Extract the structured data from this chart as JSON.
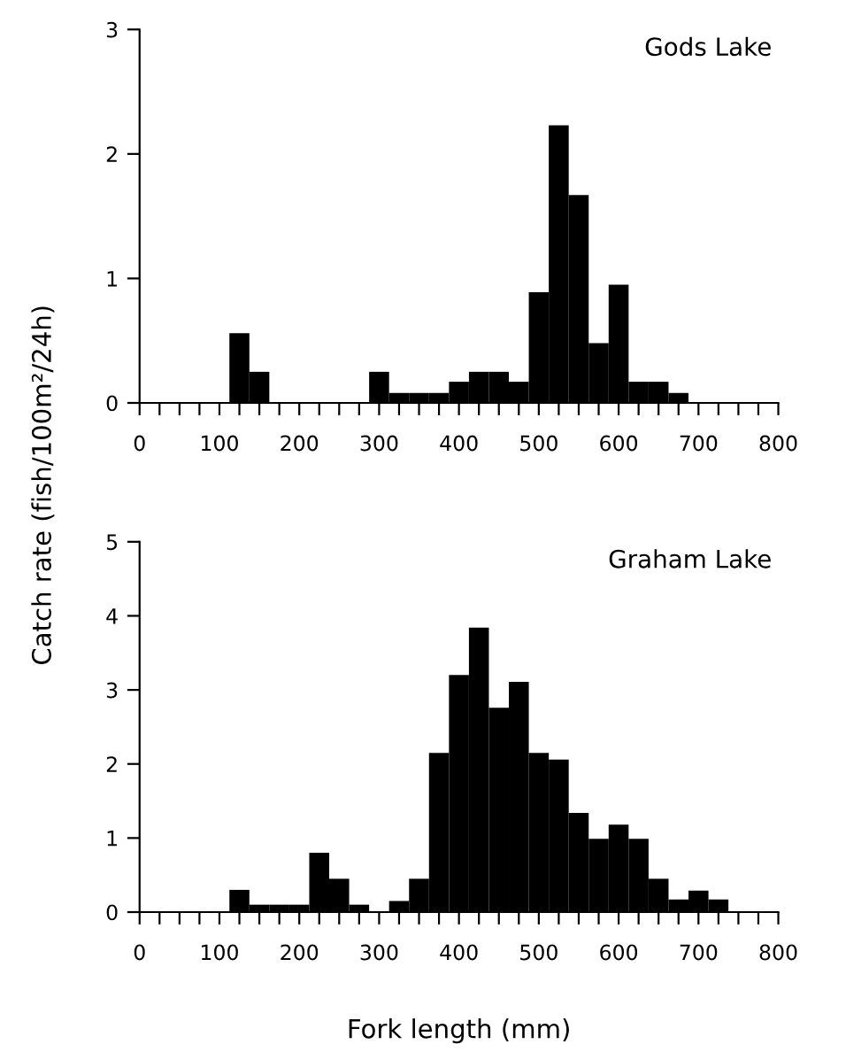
{
  "chart_data": [
    {
      "type": "histogram",
      "ylabel": "Catch rate (fish/100m²/24h)",
      "annotations": [
        "Gods Lake"
      ],
      "color": "#000000",
      "bins": [
        112.5,
        137.5,
        162.5,
        187.5,
        212.5,
        237.5,
        262.5,
        287.5,
        312.5,
        337.5,
        362.5,
        387.5,
        412.5,
        437.5,
        462.5,
        487.5,
        512.5,
        537.5,
        562.5,
        587.5,
        612.5,
        637.5,
        662.5,
        687.5
      ],
      "values": [
        0.56,
        0.25,
        0,
        0,
        0,
        0,
        0,
        0.25,
        0.08,
        0.08,
        0.08,
        0.17,
        0.25,
        0.25,
        0.17,
        0.89,
        2.23,
        1.67,
        0.48,
        0.95,
        0.17,
        0.17,
        0.08
      ],
      "xlim": [
        0,
        800
      ],
      "ylim": [
        0,
        3
      ],
      "yticks": [
        0,
        1,
        2,
        3
      ],
      "xticks": [
        0,
        {
          "value": 25,
          "label": null
        },
        {
          "value": 50,
          "label": null
        },
        {
          "value": 75,
          "label": null
        },
        100,
        {
          "value": 125,
          "label": null
        },
        {
          "value": 150,
          "label": null
        },
        {
          "value": 175,
          "label": null
        },
        200,
        {
          "value": 225,
          "label": null
        },
        {
          "value": 250,
          "label": null
        },
        {
          "value": 275,
          "label": null
        },
        300,
        {
          "value": 325,
          "label": null
        },
        {
          "value": 350,
          "label": null
        },
        {
          "value": 375,
          "label": null
        },
        400,
        {
          "value": 425,
          "label": null
        },
        {
          "value": 450,
          "label": null
        },
        {
          "value": 475,
          "label": null
        },
        500,
        {
          "value": 525,
          "label": null
        },
        {
          "value": 550,
          "label": null
        },
        {
          "value": 575,
          "label": null
        },
        600,
        {
          "value": 625,
          "label": null
        },
        {
          "value": 650,
          "label": null
        },
        {
          "value": 675,
          "label": null
        },
        700,
        {
          "value": 725,
          "label": null
        },
        {
          "value": 750,
          "label": null
        },
        {
          "value": 775,
          "label": null
        },
        800
      ],
      "grid": false
    },
    {
      "type": "histogram",
      "xlabel": "Fork length (mm)",
      "annotations": [
        "Graham Lake"
      ],
      "color": "#000000",
      "bins": [
        112.5,
        137.5,
        162.5,
        187.5,
        212.5,
        237.5,
        262.5,
        287.5,
        312.5,
        337.5,
        362.5,
        387.5,
        412.5,
        437.5,
        462.5,
        487.5,
        512.5,
        537.5,
        562.5,
        587.5,
        612.5,
        637.5,
        662.5,
        687.5,
        712.5,
        737.5
      ],
      "values": [
        0.3,
        0.1,
        0.1,
        0.1,
        0.8,
        0.45,
        0.1,
        0,
        0.15,
        0.45,
        2.15,
        3.2,
        3.84,
        2.76,
        3.11,
        2.15,
        2.06,
        1.34,
        0.99,
        1.18,
        0.99,
        0.45,
        0.17,
        0.29,
        0.17
      ],
      "xlim": [
        0,
        800
      ],
      "ylim": [
        0,
        5
      ],
      "yticks": [
        0,
        1,
        2,
        3,
        4,
        5
      ],
      "xticks": [
        0,
        {
          "value": 25,
          "label": null
        },
        {
          "value": 50,
          "label": null
        },
        {
          "value": 75,
          "label": null
        },
        100,
        {
          "value": 125,
          "label": null
        },
        {
          "value": 150,
          "label": null
        },
        {
          "value": 175,
          "label": null
        },
        200,
        {
          "value": 225,
          "label": null
        },
        {
          "value": 250,
          "label": null
        },
        {
          "value": 275,
          "label": null
        },
        300,
        {
          "value": 325,
          "label": null
        },
        {
          "value": 350,
          "label": null
        },
        {
          "value": 375,
          "label": null
        },
        400,
        {
          "value": 425,
          "label": null
        },
        {
          "value": 450,
          "label": null
        },
        {
          "value": 475,
          "label": null
        },
        500,
        {
          "value": 525,
          "label": null
        },
        {
          "value": 550,
          "label": null
        },
        {
          "value": 575,
          "label": null
        },
        600,
        {
          "value": 625,
          "label": null
        },
        {
          "value": 650,
          "label": null
        },
        {
          "value": 675,
          "label": null
        },
        700,
        {
          "value": 725,
          "label": null
        },
        {
          "value": 750,
          "label": null
        },
        {
          "value": 775,
          "label": null
        },
        800
      ],
      "grid": false
    }
  ]
}
